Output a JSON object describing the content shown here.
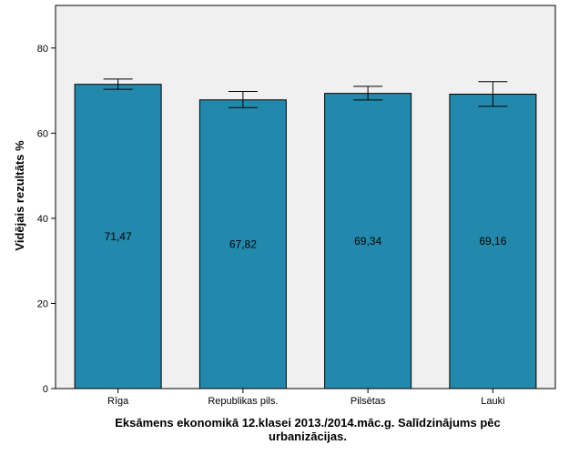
{
  "chart_data": {
    "type": "bar",
    "categories": [
      "Rīga",
      "Republikas pils.",
      "Pilsētas",
      "Lauki"
    ],
    "values": [
      71.47,
      67.82,
      69.34,
      69.16
    ],
    "data_labels": [
      "71,47",
      "67,82",
      "69,34",
      "69,16"
    ],
    "error_bars": [
      {
        "low": 70.3,
        "high": 72.7
      },
      {
        "low": 66.0,
        "high": 69.8
      },
      {
        "low": 67.8,
        "high": 71.0
      },
      {
        "low": 66.3,
        "high": 72.1
      }
    ],
    "ylabel": "Vidējais rezultāts %",
    "xlabel_line1": "Eksāmens ekonomikā 12.klasei 2013./2014.māc.g. Salīdzinājums pēc",
    "xlabel_line2": "urbanizācijas.",
    "ylim": [
      0,
      90
    ],
    "yticks": [
      0,
      20,
      40,
      60,
      80
    ],
    "grid": false,
    "colors": {
      "bar": "#2389ac",
      "plot_background": "#f0f0f0",
      "frame": "#000000"
    }
  }
}
